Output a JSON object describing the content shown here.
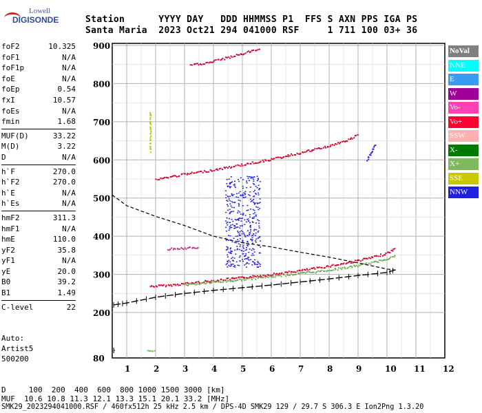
{
  "logo": {
    "line1": "Lowell",
    "line2": "DIGISONDE"
  },
  "header": {
    "row1": "Station      YYYY DAY   DDD HHMMSS P1  FFS S AXN PPS IGA PS",
    "row2": "Santa Maria  2023 Oct21 294 041000 RSF     1 711 100 03+ 36"
  },
  "parameters": [
    [
      {
        "name": "foF2",
        "value": "10.325"
      },
      {
        "name": "foF1",
        "value": "N/A"
      },
      {
        "name": "foF1p",
        "value": "N/A"
      },
      {
        "name": "foE",
        "value": "N/A"
      },
      {
        "name": "foEp",
        "value": "0.54"
      },
      {
        "name": "fxI",
        "value": "10.57"
      },
      {
        "name": "foEs",
        "value": "N/A"
      },
      {
        "name": "fmin",
        "value": "1.68"
      }
    ],
    [
      {
        "name": "MUF(D)",
        "value": "33.22"
      },
      {
        "name": "M(D)",
        "value": "3.22"
      },
      {
        "name": "D",
        "value": "N/A"
      }
    ],
    [
      {
        "name": "h`F",
        "value": "270.0"
      },
      {
        "name": "h`F2",
        "value": "270.0"
      },
      {
        "name": "h`E",
        "value": "N/A"
      },
      {
        "name": "h`Es",
        "value": "N/A"
      }
    ],
    [
      {
        "name": "hmF2",
        "value": "311.3"
      },
      {
        "name": "hmF1",
        "value": "N/A"
      },
      {
        "name": "hmE",
        "value": "110.0"
      },
      {
        "name": "yF2",
        "value": "35.8"
      },
      {
        "name": "yF1",
        "value": "N/A"
      },
      {
        "name": "yE",
        "value": "20.0"
      },
      {
        "name": "B0",
        "value": "39.2"
      },
      {
        "name": "B1",
        "value": "1.49"
      }
    ],
    [
      {
        "name": "C-level",
        "value": "22"
      }
    ]
  ],
  "auto": {
    "line1": "Auto:",
    "line2": "Artist5",
    "line3": "500200"
  },
  "bottom": {
    "d_row": "D     100  200  400  600  800 1000 1500 3000 [km]",
    "muf_row": "MUF  10.6 10.8 11.3 12.1 13.3 15.1 20.1 33.2 [MHz]",
    "file_row": "SMK29_2023294041000.RSF / 460fx512h 25 kHz 2.5 km / DPS-4D SMK29 129 / 29.7 S 306.3 E Ion2Png 1.3.20"
  },
  "legend": [
    {
      "label": "NoVal",
      "color": "#808080"
    },
    {
      "label": "NNE",
      "color": "#00ffff"
    },
    {
      "label": "E",
      "color": "#3a9cf0"
    },
    {
      "label": "W",
      "color": "#a0009a"
    },
    {
      "label": "Vo-",
      "color": "#ff40b0"
    },
    {
      "label": "Vo+",
      "color": "#ff0030"
    },
    {
      "label": "SSW",
      "color": "#ffb0b0"
    },
    {
      "label": "X-",
      "color": "#007a00"
    },
    {
      "label": "X+",
      "color": "#80b860"
    },
    {
      "label": "SSE",
      "color": "#c8c800"
    },
    {
      "label": "NNW",
      "color": "#2020e0"
    }
  ],
  "chart_data": {
    "type": "scatter",
    "xlim": [
      0.5,
      12
    ],
    "ylim": [
      80,
      900
    ],
    "x_ticks": [
      1,
      2,
      3,
      4,
      5,
      6,
      7,
      8,
      9,
      10,
      11,
      12
    ],
    "y_ticks": [
      80,
      200,
      300,
      400,
      500,
      600,
      700,
      800,
      900
    ],
    "grid": true,
    "series": [
      {
        "name": "Vo+",
        "color": "#d0002a",
        "kind": "trace",
        "points": [
          [
            1.8,
            270
          ],
          [
            2.5,
            273
          ],
          [
            3.5,
            281
          ],
          [
            4.5,
            289
          ],
          [
            5.5,
            297
          ],
          [
            6.5,
            306
          ],
          [
            7.5,
            317
          ],
          [
            8.5,
            330
          ],
          [
            9.5,
            346
          ],
          [
            10.0,
            357
          ],
          [
            10.3,
            370
          ]
        ]
      },
      {
        "name": "X+",
        "color": "#70a850",
        "kind": "trace",
        "points": [
          [
            3.0,
            274
          ],
          [
            4.5,
            284
          ],
          [
            6.0,
            296
          ],
          [
            7.5,
            308
          ],
          [
            8.5,
            318
          ],
          [
            9.5,
            332
          ],
          [
            10.3,
            350
          ]
        ]
      },
      {
        "name": "Vo+",
        "color": "#d0002a",
        "kind": "trace",
        "points": [
          [
            2.0,
            550
          ],
          [
            3.0,
            564
          ],
          [
            4.0,
            575
          ],
          [
            5.0,
            589
          ],
          [
            6.0,
            603
          ],
          [
            7.0,
            620
          ],
          [
            8.0,
            638
          ],
          [
            8.7,
            655
          ],
          [
            9.0,
            668
          ]
        ]
      },
      {
        "name": "Vo+",
        "color": "#d0002a",
        "kind": "trace",
        "points": [
          [
            3.2,
            850
          ],
          [
            3.8,
            856
          ],
          [
            4.4,
            868
          ],
          [
            5.0,
            880
          ],
          [
            5.6,
            893
          ]
        ]
      },
      {
        "name": "Vo-",
        "color": "#c03080",
        "kind": "trace",
        "points": [
          [
            2.4,
            368
          ],
          [
            3.0,
            370
          ],
          [
            3.5,
            371
          ]
        ]
      },
      {
        "name": "NNW",
        "color": "#2020e0",
        "kind": "cloud",
        "center": [
          5.0,
          440
        ],
        "spread": [
          0.6,
          120
        ]
      },
      {
        "name": "NNW",
        "color": "#2020e0",
        "kind": "trace",
        "points": [
          [
            9.3,
            600
          ],
          [
            9.6,
            645
          ]
        ]
      },
      {
        "name": "SSE",
        "color": "#b8c800",
        "kind": "trace",
        "points": [
          [
            1.8,
            625
          ],
          [
            1.8,
            730
          ]
        ]
      },
      {
        "name": "X+",
        "color": "#80b860",
        "kind": "trace",
        "points": [
          [
            1.7,
            100
          ],
          [
            2.0,
            100
          ]
        ]
      }
    ],
    "profile": {
      "points": [
        [
          0.5,
          508
        ],
        [
          1.0,
          480
        ],
        [
          2.0,
          452
        ],
        [
          3.0,
          428
        ],
        [
          4.0,
          400
        ],
        [
          5.0,
          383
        ],
        [
          6.0,
          372
        ],
        [
          7.0,
          358
        ],
        [
          8.0,
          345
        ],
        [
          9.0,
          330
        ],
        [
          10.0,
          314
        ],
        [
          10.3,
          311
        ]
      ]
    },
    "virtual_height": {
      "points": [
        [
          0.55,
          220
        ],
        [
          1.0,
          225
        ],
        [
          2.0,
          240
        ],
        [
          3.0,
          250
        ],
        [
          4.0,
          258
        ],
        [
          5.0,
          265
        ],
        [
          6.0,
          272
        ],
        [
          7.0,
          280
        ],
        [
          8.0,
          288
        ],
        [
          9.0,
          297
        ],
        [
          10.0,
          305
        ],
        [
          10.3,
          312
        ]
      ]
    }
  }
}
